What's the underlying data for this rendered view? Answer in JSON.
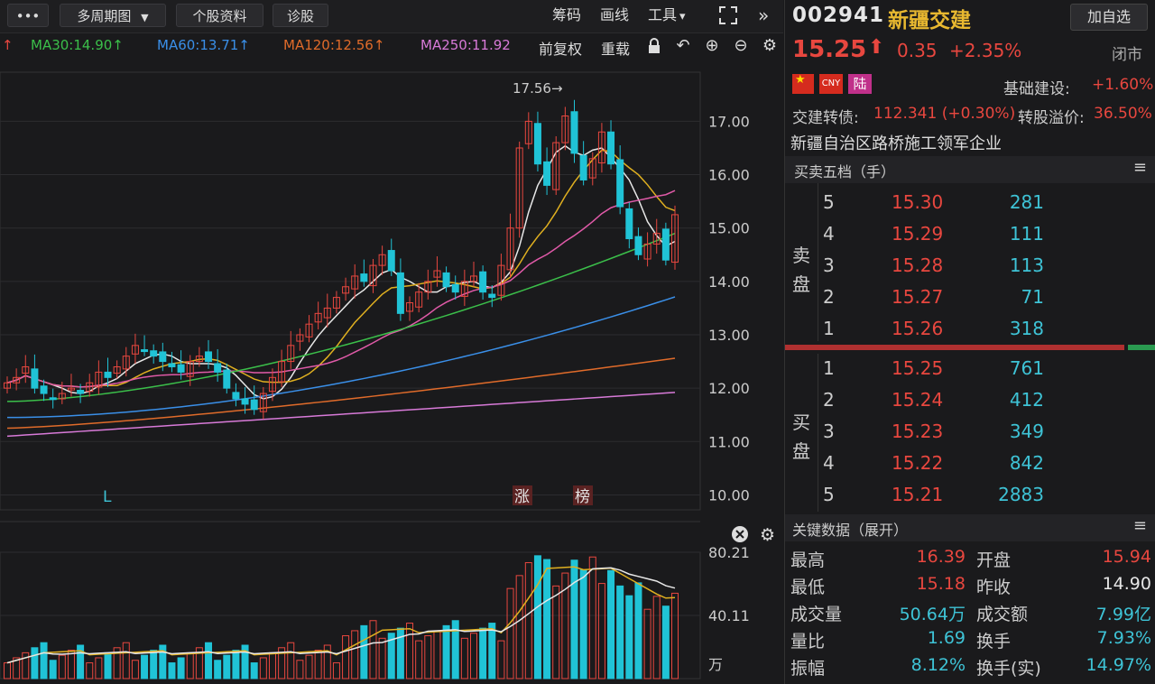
{
  "toolbar": {
    "more_label": "•••",
    "period_label": "多周期图",
    "period_caret": "▼",
    "f10_label": "个股资料",
    "diagnose_label": "诊股",
    "chips_label": "筹码",
    "draw_label": "画线",
    "tools_label": "工具",
    "tools_caret": "▾",
    "fullscreen_icon": "fullscreen-icon",
    "collapse_icon": "double-chevron-right-icon"
  },
  "ma_bar": {
    "lead_arrow": "↑",
    "ma30": "MA30:14.90↑",
    "ma60": "MA60:13.71↑",
    "ma120": "MA120:12.56↑",
    "ma250": "MA250:11.92",
    "adjust_label": "前复权",
    "overlay_label": "重载",
    "colors": {
      "ma30": "#3bbf4a",
      "ma60": "#3a8fe8",
      "ma120": "#e06b2a",
      "ma250": "#d87ad8"
    }
  },
  "chart_data": {
    "type": "candlestick",
    "y_ticks": [
      "17.00",
      "16.00",
      "15.00",
      "14.00",
      "13.00",
      "12.00",
      "11.00",
      "10.00"
    ],
    "ylim": [
      9.72,
      17.92
    ],
    "high_annotation": "17.56→",
    "markers": {
      "left_mark": "L",
      "limit_up_1": "涨",
      "limit_up_2": "榜"
    },
    "volume": {
      "ticks": [
        "80.21",
        "40.11"
      ],
      "unit": "万",
      "ylim": [
        0,
        80.21
      ]
    },
    "colors": {
      "up": "#e8473f",
      "down": "#20c3d6",
      "ma5": "#e8e8e8",
      "ma10": "#e0b020",
      "ma20": "#e05aa8",
      "ma30": "#3bbf4a",
      "ma60": "#3a8fe8",
      "ma120": "#e06b2a",
      "ma250": "#d87ad8"
    }
  },
  "stock": {
    "code": "002941",
    "name": "新疆交建",
    "add_watch": "加自选",
    "price": "15.25",
    "price_arrow": "⬆",
    "change": "0.35",
    "change_pct": "+2.35%",
    "status": "闭市",
    "badges": [
      "CNY",
      "陆"
    ],
    "sector_label": "基础建设:",
    "sector_pct": "+1.60%",
    "bond_label": "交建转债:",
    "bond_value": "112.341 (+0.30%)",
    "premium_label": "转股溢价:",
    "premium_value": "36.50%",
    "desc": "新疆自治区路桥施工领军企业"
  },
  "orderbook": {
    "title": "买卖五档（手）",
    "sell_label": [
      "卖",
      "盘"
    ],
    "buy_label": [
      "买",
      "盘"
    ],
    "sell": [
      {
        "level": "5",
        "price": "15.30",
        "vol": "281"
      },
      {
        "level": "4",
        "price": "15.29",
        "vol": "111"
      },
      {
        "level": "3",
        "price": "15.28",
        "vol": "113"
      },
      {
        "level": "2",
        "price": "15.27",
        "vol": "71"
      },
      {
        "level": "1",
        "price": "15.26",
        "vol": "318"
      }
    ],
    "buy": [
      {
        "level": "1",
        "price": "15.25",
        "vol": "761"
      },
      {
        "level": "2",
        "price": "15.24",
        "vol": "412"
      },
      {
        "level": "3",
        "price": "15.23",
        "vol": "349"
      },
      {
        "level": "4",
        "price": "15.22",
        "vol": "842"
      },
      {
        "level": "5",
        "price": "15.21",
        "vol": "2883"
      }
    ],
    "buy_ratio": 0.92
  },
  "key_data": {
    "title": "关键数据（展开）",
    "high_label": "最高",
    "high": "16.39",
    "open_label": "开盘",
    "open": "15.94",
    "low_label": "最低",
    "low": "15.18",
    "prev_label": "昨收",
    "prev": "14.90",
    "vol_label": "成交量",
    "vol": "50.64万",
    "amt_label": "成交额",
    "amt": "7.99亿",
    "ratio_label": "量比",
    "ratio": "1.69",
    "turn_label": "换手",
    "turn": "7.93%",
    "amp_label": "振幅",
    "amp": "8.12%",
    "turn_real_label": "换手(实)",
    "turn_real": "14.97%"
  }
}
